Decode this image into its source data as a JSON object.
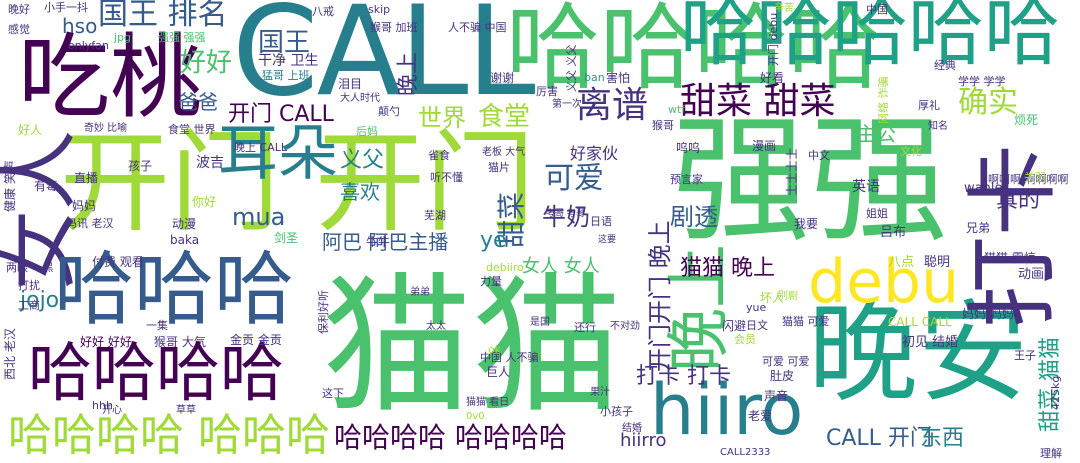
{
  "palette": {
    "c1": "#440154",
    "c2": "#46327e",
    "c3": "#365c8d",
    "c4": "#277f8e",
    "c5": "#1fa187",
    "c6": "#4ac16d",
    "c7": "#a0da39",
    "c8": "#fde725"
  },
  "words": {
    "call": "CALL",
    "maomao": "猫猫",
    "kaimen_kaimen": "开门 开门",
    "qiangqiang": "强强",
    "wanan": "晚安",
    "hiiro": "hiiro",
    "chitao": "吃桃",
    "nvren": "女人",
    "hahaha_big": "哈哈哈",
    "hahahaha_big": "哈哈哈哈",
    "hahahahaha_hahaha": "哈哈哈哈 哈哈哈",
    "hahaha_top": "哈哈哈哈哈",
    "hahahahaha_row": "哈哈哈哈 哈哈哈哈",
    "daka_v": "打卡",
    "debu": "debu",
    "wanshang_v": "晚上",
    "erduo": "耳朵",
    "guowang_paiming": "国王 排名",
    "guowang": "国王",
    "haohao": "好好",
    "babab": "爸爸",
    "kaimen_call": "开门 CALL",
    "shijie": "世界",
    "shitang": "食堂",
    "lipu": "离谱",
    "tiancai": "甜菜 甜菜",
    "queshi": "确实",
    "zhugong": "主公",
    "kaimen_wanshang_v": "开门开门 晚上",
    "keai": "可爱",
    "yifu": "义父",
    "mua": "mua",
    "xihuan": "喜欢",
    "tiancai_v": "甜菜",
    "niunai": "牛奶",
    "jutou": "剧透",
    "zhende": "真的",
    "aba_zhubo": "阿巴 阿巴主播",
    "ye": "ye",
    "nvren_nvren": "女人 女人",
    "maomao_wanshang": "猫猫 晚上",
    "daka_daka": "打卡 打卡",
    "call_kaimen": "CALL 开门",
    "dongxi": "东西",
    "tiancai_maomao_v": "甜菜 猫猫",
    "jojo": "jojo",
    "hso": "hso",
    "hiirro": "hiirro",
    "wanshang_v2": "晚上",
    "xiaoshou_yidou": "小手一抖",
    "gouzi_v": "够了",
    "ganjue": "感觉",
    "wanhao": "晚好",
    "bajie": "八戒",
    "skip": "skip",
    "wanshang_top": "晚上",
    "kaimen_debu": "开门 debu",
    "zhongguo": "中国",
    "xinku": "辛苦",
    "lianhua": "莲花",
    "onlyfan": "onlyfan",
    "jpg": "jpg",
    "qiangqiang_small": "强强 强强",
    "ganjing_weisheng": "干净 卫生",
    "mengge_shangban": "猛哥 上班",
    "houge_jiaban": "猴哥 加班",
    "renbupian": "人不骗 中国",
    "yifu_yifu_v": "义父 义父",
    "xieyi_v": "写意",
    "haokan": "好看",
    "jingdian": "经典",
    "xuexue": "学学 学学",
    "mofa": "魔法",
    "jiehun_v": "结婚 结婚",
    "houge": "猴哥",
    "meiyou": "没有",
    "dadashidai": "大人时代",
    "diandao": "颠勺",
    "houdao": "后妈",
    "leimu": "泪目",
    "lihai": "厉害",
    "xiexie": "谢谢",
    "ban": "ban",
    "haipa": "害怕",
    "diyici": "第一次",
    "zhidao": "知名",
    "wtf": "wtf",
    "houge2": "猴哥",
    "fanzao": "烦死",
    "wangluo_v": "网络 诈骗",
    "houle": "厚礼",
    "zhenqu": "真去",
    "haoren": "好人",
    "qihao_bijiao": "奇妙 比喻",
    "shitang_shijie": "食堂 世界",
    "buhao_v": "不好",
    "zhibo": "直播",
    "haizi": "孩子",
    "boji": "波吉",
    "wanshang_call": "晚上 CALL",
    "queshi_small": "雀食",
    "laoban_daqi": "老板 大气",
    "mao_pian": "猫片",
    "haojiahuo": "好家伙",
    "wuwu": "呜呜",
    "manhua": "漫画",
    "wenhua": "文化",
    "tingbudong": "听不懂",
    "zhongwen": "中文",
    "shi_v": "士士士士",
    "yinyu": "英语",
    "woyao": "我要",
    "aaaa": "啊啊啊 啊啊啊啊",
    "yuyanjia": "预言家",
    "lvbu": "吕布",
    "wanle": "wanle",
    "guanyu": "关羽",
    "jiejie": "姐姐",
    "hao_ni_v": "好你",
    "maomao_zhendong": "猫猫 震惊",
    "jianzai_v": "健康 笑声",
    "youhai": "有毒",
    "mama": "妈妈",
    "fengxun_laohan": "冯讯 老汉",
    "dongman": "动漫",
    "baka": "baka",
    "nihao": "你好",
    "zhibo2": "直播",
    "jianshen": "剑圣",
    "rou_v": "肉肉",
    "wuhu": "芜湖",
    "riyu": "日语",
    "kaoge": "考哥 考哥",
    "zheyao": "这要",
    "niuniu": "牛牛",
    "debiiro": "debiiro",
    "kaimen_small": "debu 开门",
    "fufei_guankan": "付费 观看",
    "liangjie_yihei": "两眼 一黑",
    "dadong": "打扰",
    "gongshang": "工商",
    "haohao_haohao": "好好 好好",
    "houge_daqi": "猴哥 大气",
    "jinggong": "金贡 金贡",
    "yiji": "一集",
    "baoli_haoting": "保利好听",
    "liliang": "力量",
    "didi": "弟弟",
    "taitai": "太太",
    "shiguo": "是国",
    "huanle": "还行",
    "buduijin": "不对劲",
    "zhongguo_renbupian": "中国 人不骗",
    "ok": "ok",
    "juren": "巨人",
    "chaoguo_v": "超过",
    "guozi": "果汁",
    "zhexia": "这下",
    "xiaohaizi": "小孩子",
    "jiehun": "结婚",
    "kaixin": "开心",
    "caocao": "草草",
    "baobao": "宝宝",
    "ovo": "0v0",
    "call2333": "CALL2333",
    "maomao_xiangri": "猫猫 看日",
    "hhh": "hhh",
    "yue": "yue",
    "riwen": "日文",
    "huiyuan": "会员",
    "shandou": "闪避",
    "biele": "别剧",
    "kuaile": "坏人",
    "baidian": "八点",
    "congming": "聪明",
    "dongxi2": "动画",
    "maomao_keai": "猫猫 可爱",
    "call_call": "CALL CALL",
    "mama_mama": "妈妈 妈妈",
    "wangzi": "王子",
    "chujian_jiegou": "初见 结婚",
    "425kg": "425kg",
    "shengyin": "声音",
    "laoai": "老爱",
    "dudu": "肚皮",
    "keai_keai": "可爱 可爱",
    "xiongdi": "兄弟",
    "lihai2": "理解",
    "xibei_v": "西北 老汉",
    "jiaoke": "搞笑"
  }
}
